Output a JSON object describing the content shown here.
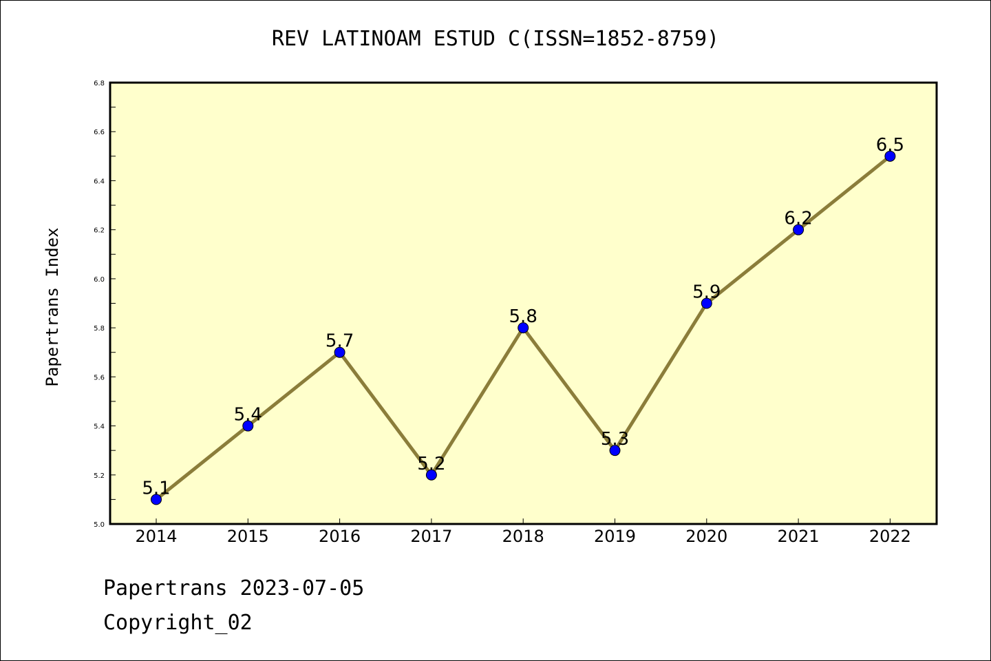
{
  "chart_data": {
    "type": "line",
    "title": "REV LATINOAM ESTUD C(ISSN=1852-8759)",
    "xlabel": "",
    "ylabel": "Papertrans Index",
    "categories": [
      "2014",
      "2015",
      "2016",
      "2017",
      "2018",
      "2019",
      "2020",
      "2021",
      "2022"
    ],
    "values": [
      5.1,
      5.4,
      5.7,
      5.2,
      5.8,
      5.3,
      5.9,
      6.2,
      6.5
    ],
    "data_labels": [
      "5.1",
      "5.4",
      "5.7",
      "5.2",
      "5.8",
      "5.3",
      "5.9",
      "6.2",
      "6.5"
    ],
    "ylim": [
      5.0,
      6.8
    ],
    "yticks": [
      5.0,
      5.2,
      5.4,
      5.6,
      5.8,
      6.0,
      6.2,
      6.4,
      6.6,
      6.8
    ],
    "ytick_labels": [
      "5.0",
      "5.2",
      "5.4",
      "5.6",
      "5.8",
      "6.0",
      "6.2",
      "6.4",
      "6.6",
      "6.8"
    ],
    "grid": false,
    "colors": {
      "plot_background": "#ffffcc",
      "line": "#8b7d3a",
      "marker": "#0000ff"
    }
  },
  "footer": {
    "line1": "Papertrans 2023-07-05",
    "line2": "Copyright_02"
  }
}
